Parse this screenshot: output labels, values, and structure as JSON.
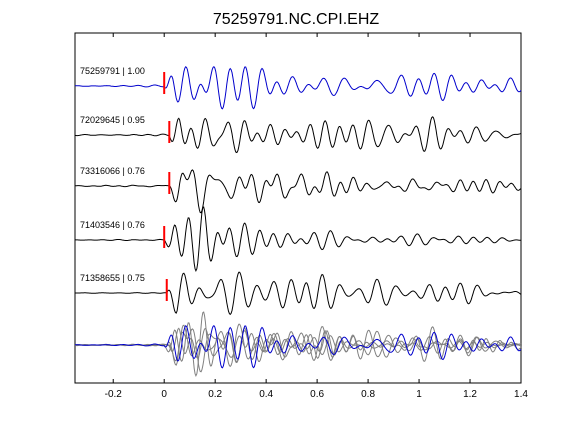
{
  "chart_data": {
    "type": "line",
    "title": "75259791.NC.CPI.EHZ",
    "xlabel": "",
    "ylabel": "",
    "xlim": [
      -0.35,
      1.4
    ],
    "xticks": [
      -0.2,
      0,
      0.2,
      0.4,
      0.6,
      0.8,
      1,
      1.2,
      1.4
    ],
    "xtick_labels": [
      "-0.2",
      "0",
      "0.2",
      "0.4",
      "0.6",
      "0.8",
      "1",
      "1.2",
      "1.4"
    ],
    "grid": false,
    "colors": {
      "reference": "#0000cc",
      "trace": "#000000",
      "overlay": "#808080",
      "pick": "#ff0000"
    },
    "traces": [
      {
        "label": "75259791 | 1.00",
        "reference": true,
        "pick_time": 0.0,
        "envelope": [
          [
            -0.35,
            0.02
          ],
          [
            0.0,
            0.03
          ],
          [
            0.04,
            0.9
          ],
          [
            0.15,
            1.0
          ],
          [
            0.3,
            0.9
          ],
          [
            0.5,
            0.55
          ],
          [
            0.8,
            0.7
          ],
          [
            1.0,
            0.55
          ],
          [
            1.2,
            0.45
          ],
          [
            1.4,
            0.4
          ]
        ]
      },
      {
        "label": "72029645 | 0.95",
        "reference": false,
        "pick_time": 0.02,
        "envelope": [
          [
            -0.35,
            0.02
          ],
          [
            0.0,
            0.03
          ],
          [
            0.04,
            0.9
          ],
          [
            0.15,
            1.0
          ],
          [
            0.3,
            0.95
          ],
          [
            0.5,
            0.6
          ],
          [
            0.8,
            0.55
          ],
          [
            1.0,
            0.4
          ],
          [
            1.2,
            0.2
          ],
          [
            1.4,
            0.15
          ]
        ]
      },
      {
        "label": "73316066 | 0.76",
        "reference": false,
        "pick_time": 0.02,
        "envelope": [
          [
            -0.35,
            0.02
          ],
          [
            0.0,
            0.03
          ],
          [
            0.04,
            0.8
          ],
          [
            0.15,
            1.0
          ],
          [
            0.3,
            0.7
          ],
          [
            0.5,
            0.45
          ],
          [
            0.8,
            0.45
          ],
          [
            1.0,
            0.35
          ],
          [
            1.2,
            0.3
          ],
          [
            1.4,
            0.25
          ]
        ]
      },
      {
        "label": "71403546 | 0.76",
        "reference": false,
        "pick_time": 0.0,
        "envelope": [
          [
            -0.35,
            0.01
          ],
          [
            0.0,
            0.02
          ],
          [
            0.04,
            0.6
          ],
          [
            0.15,
            1.0
          ],
          [
            0.3,
            0.45
          ],
          [
            0.5,
            0.35
          ],
          [
            0.8,
            0.25
          ],
          [
            1.0,
            0.2
          ],
          [
            1.2,
            0.15
          ],
          [
            1.4,
            0.05
          ]
        ]
      },
      {
        "label": "71358655 | 0.75",
        "reference": false,
        "pick_time": 0.01,
        "envelope": [
          [
            -0.35,
            0.01
          ],
          [
            0.0,
            0.02
          ],
          [
            0.04,
            0.9
          ],
          [
            0.15,
            1.0
          ],
          [
            0.3,
            0.8
          ],
          [
            0.5,
            0.55
          ],
          [
            0.8,
            0.6
          ],
          [
            1.0,
            0.45
          ],
          [
            1.2,
            0.35
          ],
          [
            1.4,
            0.3
          ]
        ]
      }
    ],
    "stack": {
      "label": ""
    }
  }
}
